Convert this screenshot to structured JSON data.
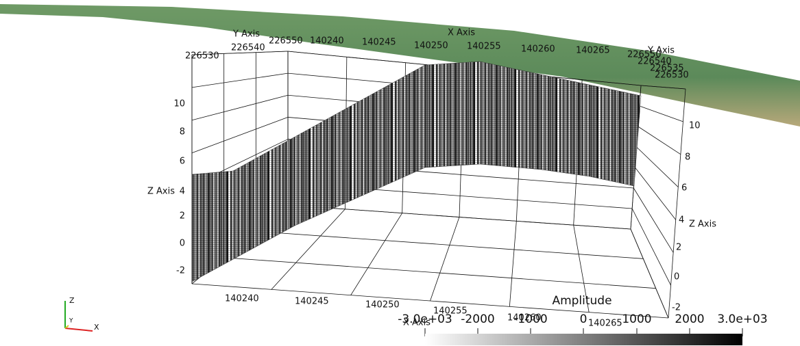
{
  "axes": {
    "top": {
      "y_axis_title": "Y Axis",
      "x_axis_title": "X Axis",
      "y_ticks": [
        "226530",
        "226540",
        "226550"
      ],
      "x_ticks": [
        "140240",
        "140245",
        "140250",
        "140255",
        "140260",
        "140265"
      ]
    },
    "top_right": {
      "y_axis_title": "Y Axis",
      "y_ticks": [
        "226550",
        "226540",
        "226535",
        "226530"
      ]
    },
    "left_z": {
      "title": "Z Axis",
      "ticks": [
        "10",
        "8",
        "6",
        "4",
        "2",
        "0",
        "-2"
      ]
    },
    "right_z": {
      "title": "Z Axis",
      "ticks": [
        "10",
        "8",
        "6",
        "4",
        "2",
        "0",
        "-2"
      ]
    },
    "bottom_x": {
      "title": "X Axis",
      "ticks": [
        "140240",
        "140245",
        "140250",
        "140255",
        "140260",
        "140265"
      ]
    }
  },
  "colorbar": {
    "title": "Amplitude",
    "ticks": [
      "-3.0e+03",
      "-2000",
      "-1000",
      "0",
      "1000",
      "2000",
      "3.0e+03"
    ]
  },
  "orientation": {
    "z": "Z",
    "y": "Y",
    "x": "X"
  }
}
